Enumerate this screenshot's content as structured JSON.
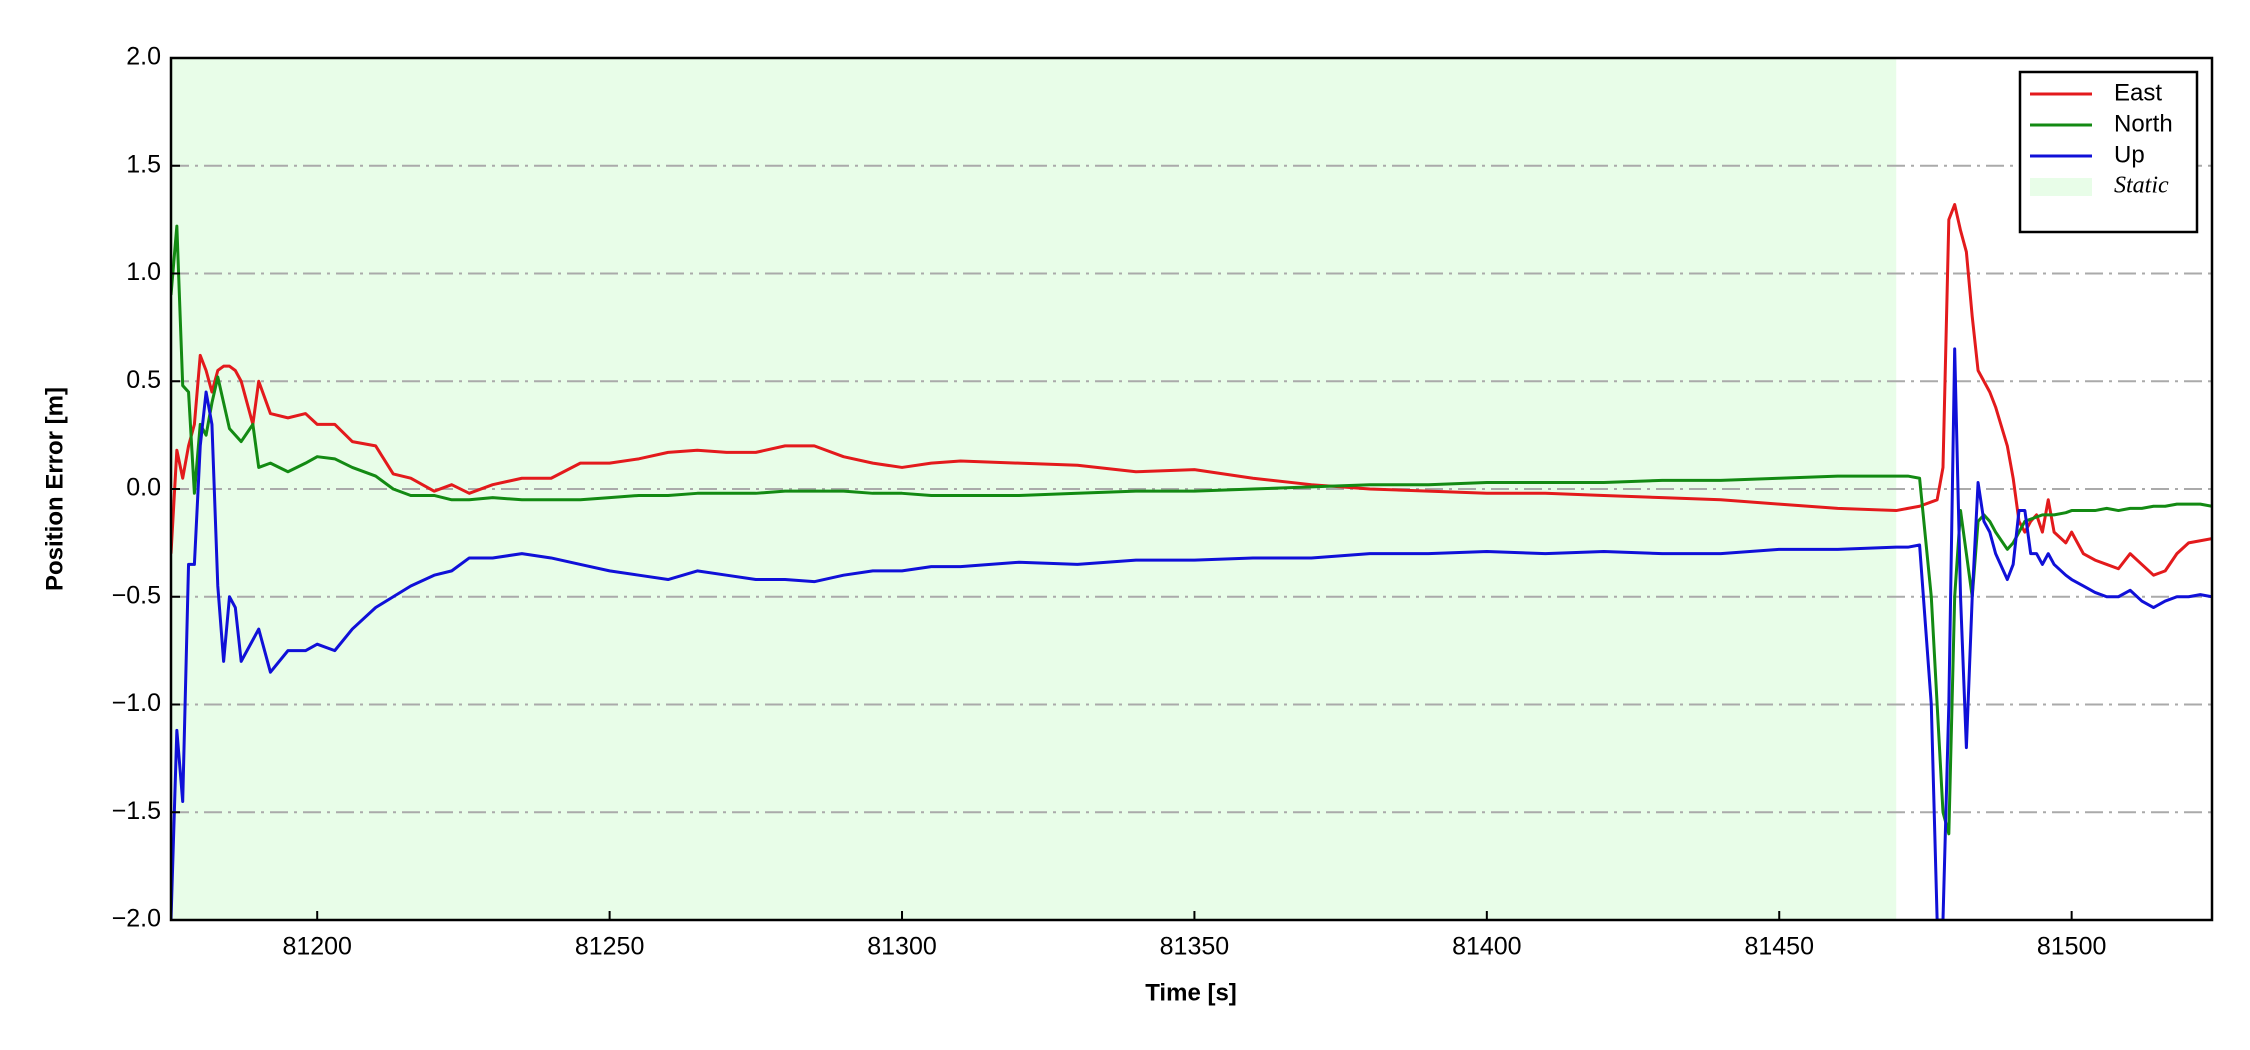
{
  "chart_data": {
    "type": "line",
    "xlabel": "Time [s]",
    "ylabel": "Position Error [m]",
    "xlim": [
      81175,
      81524
    ],
    "ylim": [
      -2.0,
      2.0
    ],
    "xticks": [
      81200,
      81250,
      81300,
      81350,
      81400,
      81450,
      81500
    ],
    "yticks": [
      {
        "value": -2.0,
        "label": "−2.0"
      },
      {
        "value": -1.5,
        "label": "−1.5"
      },
      {
        "value": -1.0,
        "label": "−1.0"
      },
      {
        "value": -0.5,
        "label": "−0.5"
      },
      {
        "value": 0.0,
        "label": "0.0"
      },
      0.5,
      {
        "value": 1.0,
        "label": "1.0"
      },
      1.5,
      {
        "value": 2.0,
        "label": "2.0"
      }
    ],
    "grid": true,
    "legend": "upper right",
    "spans": [
      {
        "start": 81175,
        "end": 81470,
        "label": "Static",
        "color": "#e8fde8"
      }
    ],
    "x": [
      81175,
      81176,
      81177,
      81178,
      81179,
      81180,
      81181,
      81182,
      81183,
      81184,
      81185,
      81186,
      81187,
      81189,
      81190,
      81192,
      81195,
      81198,
      81200,
      81203,
      81206,
      81210,
      81213,
      81216,
      81220,
      81223,
      81226,
      81230,
      81235,
      81240,
      81245,
      81250,
      81255,
      81260,
      81265,
      81270,
      81275,
      81280,
      81285,
      81290,
      81295,
      81300,
      81305,
      81310,
      81320,
      81330,
      81340,
      81350,
      81360,
      81370,
      81380,
      81390,
      81400,
      81410,
      81420,
      81430,
      81440,
      81450,
      81460,
      81470,
      81472,
      81474,
      81476,
      81477,
      81478,
      81479,
      81480,
      81481,
      81482,
      81483,
      81484,
      81485,
      81486,
      81487,
      81489,
      81490,
      81491,
      81492,
      81493,
      81494,
      81495,
      81496,
      81497,
      81499,
      81500,
      81502,
      81504,
      81506,
      81508,
      81510,
      81512,
      81514,
      81516,
      81518,
      81520,
      81522,
      81524
    ],
    "series": [
      {
        "name": "East",
        "color": "#e31a1c",
        "values": [
          -0.3,
          0.18,
          0.05,
          0.2,
          0.3,
          0.62,
          0.55,
          0.45,
          0.55,
          0.57,
          0.57,
          0.55,
          0.5,
          0.3,
          0.5,
          0.35,
          0.33,
          0.35,
          0.3,
          0.3,
          0.22,
          0.2,
          0.07,
          0.05,
          -0.01,
          0.02,
          -0.02,
          0.02,
          0.05,
          0.05,
          0.12,
          0.12,
          0.14,
          0.17,
          0.18,
          0.17,
          0.17,
          0.2,
          0.2,
          0.15,
          0.12,
          0.1,
          0.12,
          0.13,
          0.12,
          0.11,
          0.08,
          0.09,
          0.05,
          0.02,
          0.0,
          -0.01,
          -0.02,
          -0.02,
          -0.03,
          -0.04,
          -0.05,
          -0.07,
          -0.09,
          -0.1,
          -0.09,
          -0.08,
          -0.06,
          -0.05,
          0.1,
          1.25,
          1.32,
          1.2,
          1.1,
          0.8,
          0.55,
          0.5,
          0.45,
          0.38,
          0.2,
          0.05,
          -0.15,
          -0.2,
          -0.15,
          -0.12,
          -0.2,
          -0.05,
          -0.2,
          -0.25,
          -0.2,
          -0.3,
          -0.33,
          -0.35,
          -0.37,
          -0.3,
          -0.35,
          -0.4,
          -0.38,
          -0.3,
          -0.25,
          -0.24,
          -0.23
        ]
      },
      {
        "name": "North",
        "color": "#138a13",
        "values": [
          0.9,
          1.22,
          0.48,
          0.45,
          -0.02,
          0.3,
          0.25,
          0.4,
          0.52,
          0.4,
          0.28,
          0.25,
          0.22,
          0.3,
          0.1,
          0.12,
          0.08,
          0.12,
          0.15,
          0.14,
          0.1,
          0.06,
          0.0,
          -0.03,
          -0.03,
          -0.05,
          -0.05,
          -0.04,
          -0.05,
          -0.05,
          -0.05,
          -0.04,
          -0.03,
          -0.03,
          -0.02,
          -0.02,
          -0.02,
          -0.01,
          -0.01,
          -0.01,
          -0.02,
          -0.02,
          -0.03,
          -0.03,
          -0.03,
          -0.02,
          -0.01,
          -0.01,
          0.0,
          0.01,
          0.02,
          0.02,
          0.03,
          0.03,
          0.03,
          0.04,
          0.04,
          0.05,
          0.06,
          0.06,
          0.06,
          0.05,
          -0.5,
          -1.0,
          -1.5,
          -1.6,
          -0.5,
          -0.1,
          -0.3,
          -0.5,
          -0.15,
          -0.12,
          -0.15,
          -0.2,
          -0.28,
          -0.25,
          -0.2,
          -0.15,
          -0.14,
          -0.13,
          -0.12,
          -0.12,
          -0.12,
          -0.11,
          -0.1,
          -0.1,
          -0.1,
          -0.09,
          -0.1,
          -0.09,
          -0.09,
          -0.08,
          -0.08,
          -0.07,
          -0.07,
          -0.07,
          -0.08
        ]
      },
      {
        "name": "Up",
        "color": "#1010d8",
        "values": [
          -2.0,
          -1.12,
          -1.45,
          -0.35,
          -0.35,
          0.2,
          0.45,
          0.3,
          -0.45,
          -0.8,
          -0.5,
          -0.55,
          -0.8,
          -0.7,
          -0.65,
          -0.85,
          -0.75,
          -0.75,
          -0.72,
          -0.75,
          -0.65,
          -0.55,
          -0.5,
          -0.45,
          -0.4,
          -0.38,
          -0.32,
          -0.32,
          -0.3,
          -0.32,
          -0.35,
          -0.38,
          -0.4,
          -0.42,
          -0.38,
          -0.4,
          -0.42,
          -0.42,
          -0.43,
          -0.4,
          -0.38,
          -0.38,
          -0.36,
          -0.36,
          -0.34,
          -0.35,
          -0.33,
          -0.33,
          -0.32,
          -0.32,
          -0.3,
          -0.3,
          -0.29,
          -0.3,
          -0.29,
          -0.3,
          -0.3,
          -0.28,
          -0.28,
          -0.27,
          -0.27,
          -0.26,
          -1.0,
          -2.0,
          -2.0,
          -1.0,
          0.65,
          -0.5,
          -1.2,
          -0.5,
          0.03,
          -0.15,
          -0.2,
          -0.3,
          -0.42,
          -0.35,
          -0.1,
          -0.1,
          -0.3,
          -0.3,
          -0.35,
          -0.3,
          -0.35,
          -0.4,
          -0.42,
          -0.45,
          -0.48,
          -0.5,
          -0.5,
          -0.47,
          -0.52,
          -0.55,
          -0.52,
          -0.5,
          -0.5,
          -0.49,
          -0.5
        ]
      }
    ]
  }
}
